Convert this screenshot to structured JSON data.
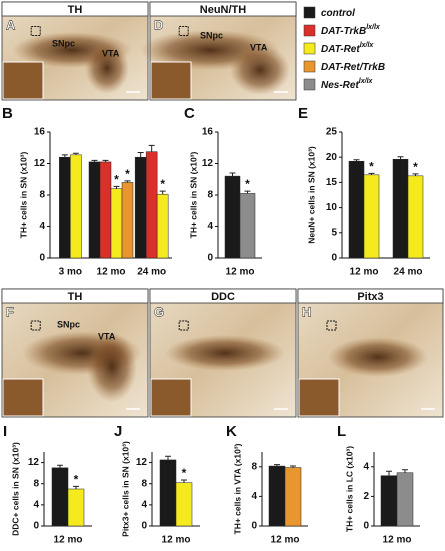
{
  "images": [
    {
      "letter": "A",
      "title": "TH",
      "labels": [
        "SNpc",
        "VTA"
      ]
    },
    {
      "letter": "D",
      "title": "NeuN/TH",
      "labels": [
        "SNpc",
        "VTA"
      ]
    },
    {
      "letter": "F",
      "title": "TH",
      "labels": [
        "SNpc",
        "VTA"
      ]
    },
    {
      "letter": "G",
      "title": "DDC"
    },
    {
      "letter": "H",
      "title": "Pitx3"
    }
  ],
  "legend": [
    {
      "name": "control",
      "color": "#1a1a1a"
    },
    {
      "name": "DAT-TrkB",
      "name_sup": "lx/lx",
      "color": "#d9302b"
    },
    {
      "name": "DAT-Ret",
      "name_sup": "lx/lx",
      "color": "#f5ea1e"
    },
    {
      "name": "DAT-Ret/TrkB",
      "color": "#e8962e"
    },
    {
      "name": "Nes-Ret",
      "name_sup": "lx/lx",
      "color": "#8c8c8c"
    }
  ],
  "chart_data": [
    {
      "type": "bar",
      "letter": "B",
      "y_label": "TH+ cells in SN (x10³)",
      "categories": [
        "3 mo",
        "12 mo",
        "24 mo"
      ],
      "ylim": [
        0,
        16
      ],
      "yticks": [
        0,
        4,
        8,
        12,
        16
      ],
      "series": [
        {
          "color": "#1a1a1a",
          "values": [
            12.8,
            12.2,
            12.8
          ],
          "errors": [
            0.3,
            0.2,
            0.6
          ]
        },
        {
          "color": "#d9302b",
          "values": [
            null,
            12.2,
            13.5
          ],
          "errors": [
            null,
            0.2,
            0.8
          ]
        },
        {
          "color": "#f5ea1e",
          "values": [
            13.1,
            8.8,
            8.1
          ],
          "errors": [
            0.2,
            0.3,
            0.4
          ],
          "annotations": [
            null,
            "*",
            "*"
          ]
        },
        {
          "color": "#e8962e",
          "values": [
            null,
            9.6,
            null
          ],
          "errors": [
            null,
            0.2,
            null
          ],
          "annotations": [
            null,
            "*",
            null
          ]
        }
      ]
    },
    {
      "type": "bar",
      "letter": "C",
      "y_label": "TH+ cells in SN (x10³)",
      "categories": [
        "12 mo"
      ],
      "ylim": [
        0,
        16
      ],
      "yticks": [
        0,
        4,
        8,
        12,
        16
      ],
      "series": [
        {
          "color": "#1a1a1a",
          "values": [
            10.4
          ],
          "errors": [
            0.4
          ]
        },
        {
          "color": "#8c8c8c",
          "values": [
            8.2
          ],
          "errors": [
            0.3
          ],
          "annotations": [
            "*"
          ]
        }
      ]
    },
    {
      "type": "bar",
      "letter": "E",
      "y_label": "NeuN+ cells in SN (x10³)",
      "categories": [
        "12 mo",
        "24 mo"
      ],
      "ylim": [
        0,
        25
      ],
      "yticks": [
        0,
        5,
        10,
        15,
        20,
        25
      ],
      "series": [
        {
          "color": "#1a1a1a",
          "values": [
            19.2,
            19.6
          ],
          "errors": [
            0.3,
            0.5
          ]
        },
        {
          "color": "#f5ea1e",
          "values": [
            16.5,
            16.3
          ],
          "errors": [
            0.3,
            0.4
          ],
          "annotations": [
            "*",
            "*"
          ]
        }
      ]
    },
    {
      "type": "bar",
      "letter": "I",
      "y_label": "DDC+ cells in SN (x10³)",
      "categories": [
        "12 mo"
      ],
      "ylim": [
        0,
        14
      ],
      "yticks": [
        0,
        4,
        8,
        12
      ],
      "series": [
        {
          "color": "#1a1a1a",
          "values": [
            11
          ],
          "errors": [
            0.5
          ]
        },
        {
          "color": "#f5ea1e",
          "values": [
            7
          ],
          "errors": [
            0.5
          ],
          "annotations": [
            "*"
          ]
        }
      ]
    },
    {
      "type": "bar",
      "letter": "J",
      "y_label": "Pitx3+ cells in SN (x10³)",
      "categories": [
        "12 mo"
      ],
      "ylim": [
        0,
        14
      ],
      "yticks": [
        0,
        4,
        8,
        12
      ],
      "series": [
        {
          "color": "#1a1a1a",
          "values": [
            12.5
          ],
          "errors": [
            0.7
          ]
        },
        {
          "color": "#f5ea1e",
          "values": [
            8.2
          ],
          "errors": [
            0.5
          ],
          "annotations": [
            "*"
          ]
        }
      ]
    },
    {
      "type": "bar",
      "letter": "K",
      "y_label": "TH+ cells in VTA (x10³)",
      "categories": [
        "12 mo"
      ],
      "ylim": [
        0,
        10
      ],
      "yticks": [
        0,
        4,
        8
      ],
      "series": [
        {
          "color": "#1a1a1a",
          "values": [
            8.1
          ],
          "errors": [
            0.2
          ]
        },
        {
          "color": "#e8962e",
          "values": [
            7.9
          ],
          "errors": [
            0.2
          ]
        }
      ]
    },
    {
      "type": "bar",
      "letter": "L",
      "y_label": "TH+ cells in LC (x10³)",
      "categories": [
        "12 mo"
      ],
      "ylim": [
        0,
        5
      ],
      "yticks": [
        0,
        2,
        4
      ],
      "series": [
        {
          "color": "#1a1a1a",
          "values": [
            3.4
          ],
          "errors": [
            0.3
          ]
        },
        {
          "color": "#8c8c8c",
          "values": [
            3.6
          ],
          "errors": [
            0.2
          ]
        }
      ]
    }
  ]
}
